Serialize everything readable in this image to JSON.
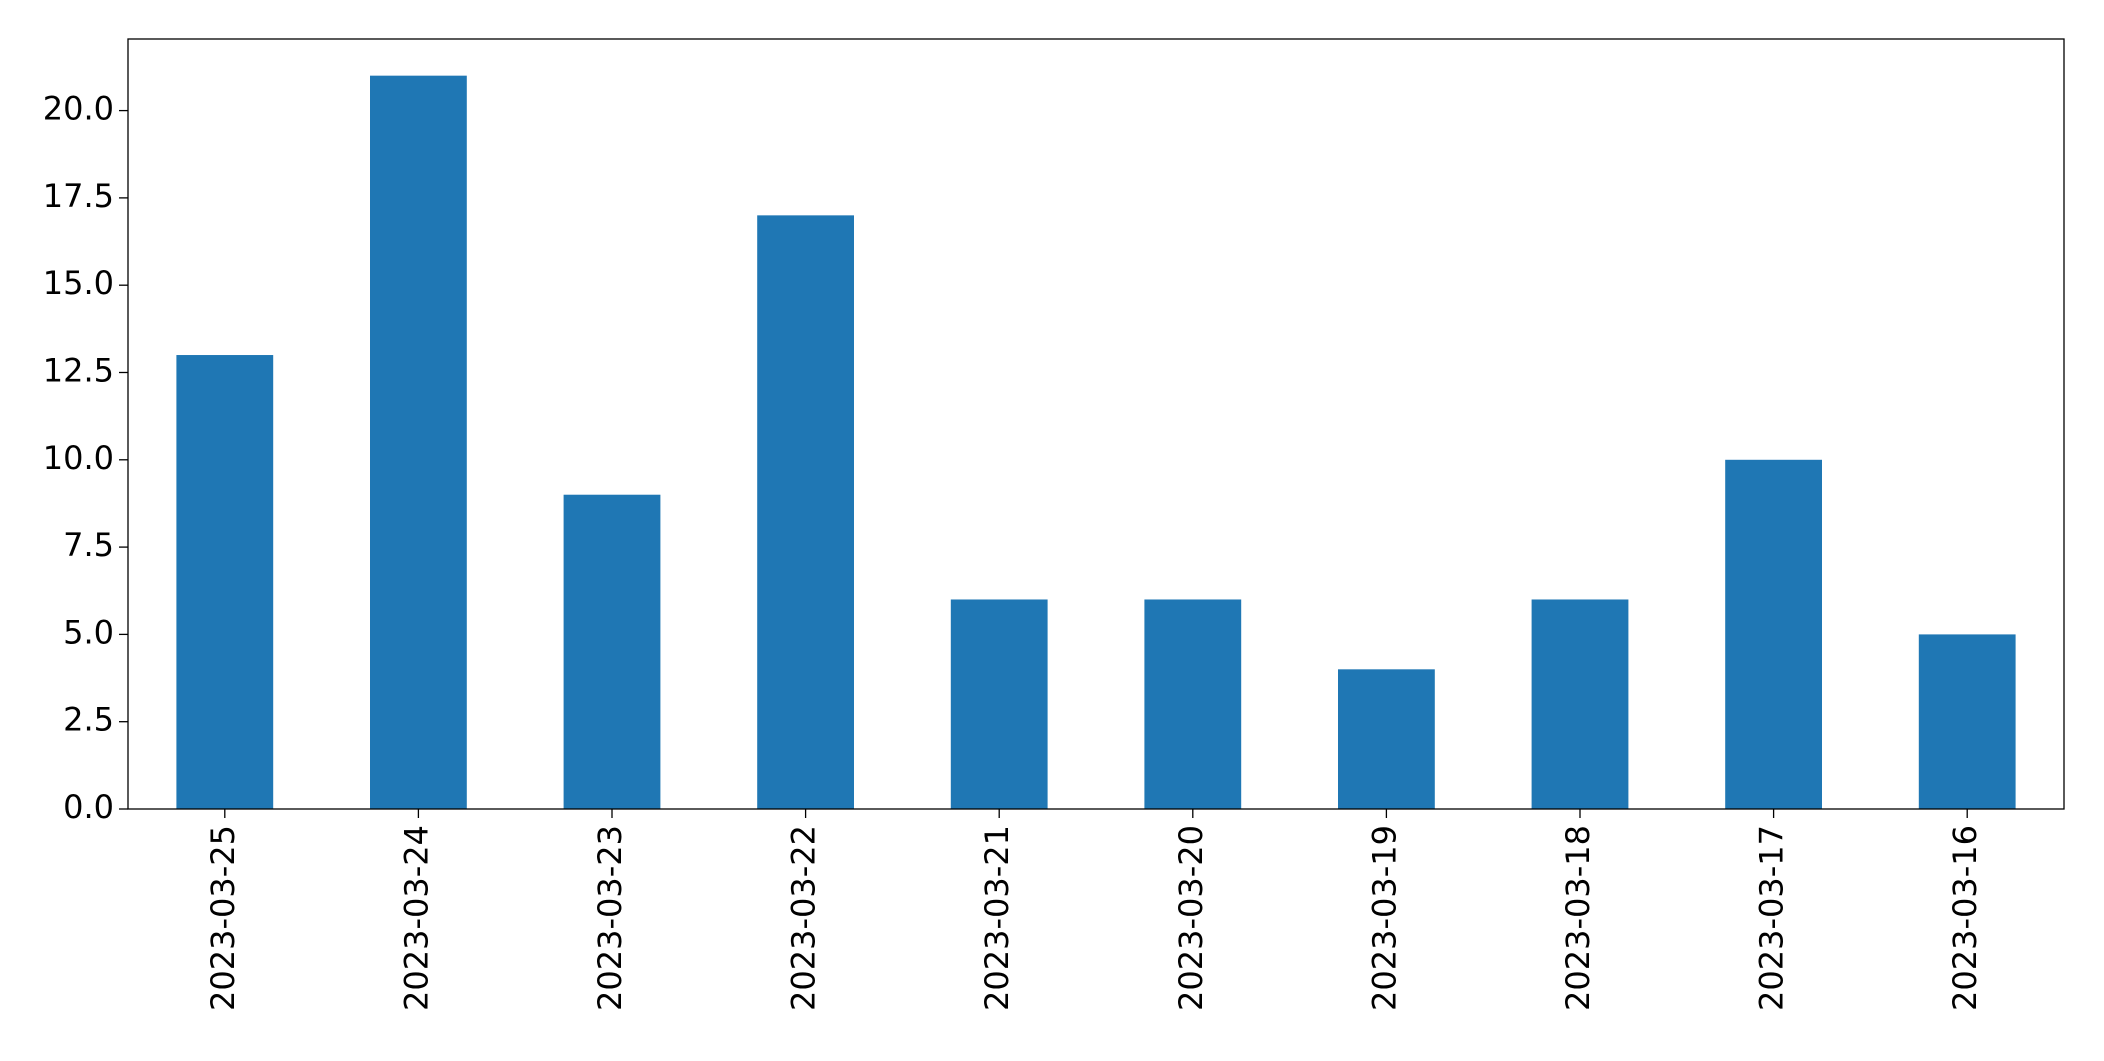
{
  "chart_data": {
    "type": "bar",
    "categories": [
      "2023-03-25",
      "2023-03-24",
      "2023-03-23",
      "2023-03-22",
      "2023-03-21",
      "2023-03-20",
      "2023-03-19",
      "2023-03-18",
      "2023-03-17",
      "2023-03-16"
    ],
    "values": [
      13,
      21,
      9,
      17,
      6,
      6,
      4,
      6,
      10,
      5
    ],
    "color": "#1f77b4",
    "ylim": [
      0,
      22.05
    ],
    "yticks": [
      {
        "value": 0,
        "label": "0.0"
      },
      2.5,
      {
        "value": 5,
        "label": "5.0"
      },
      7.5,
      {
        "value": 10,
        "label": "10.0"
      },
      12.5,
      {
        "value": 15,
        "label": "15.0"
      },
      17.5,
      {
        "value": 20,
        "label": "20.0"
      }
    ],
    "grid": false
  }
}
